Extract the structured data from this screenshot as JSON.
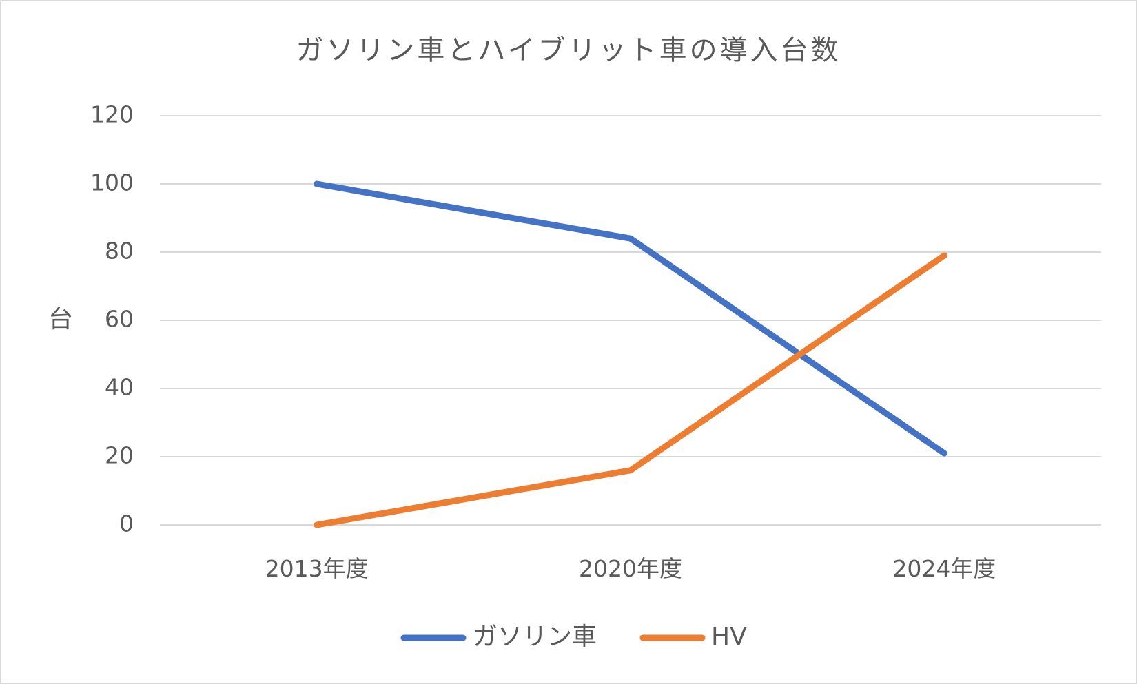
{
  "chart_data": {
    "type": "line",
    "title": "ガソリン車とハイブリット車の導入台数",
    "xlabel": "",
    "ylabel": "台",
    "categories": [
      "2013年度",
      "2020年度",
      "2024年度"
    ],
    "series": [
      {
        "name": "ガソリン車",
        "values": [
          100,
          84,
          21
        ],
        "color": "#4472c4"
      },
      {
        "name": "HV",
        "values": [
          0,
          16,
          79
        ],
        "color": "#ed7d31"
      }
    ],
    "ylim": [
      0,
      120
    ],
    "yticks": [
      "0",
      "20",
      "40",
      "60",
      "80",
      "100",
      "120"
    ],
    "grid": true,
    "legend_position": "bottom"
  }
}
